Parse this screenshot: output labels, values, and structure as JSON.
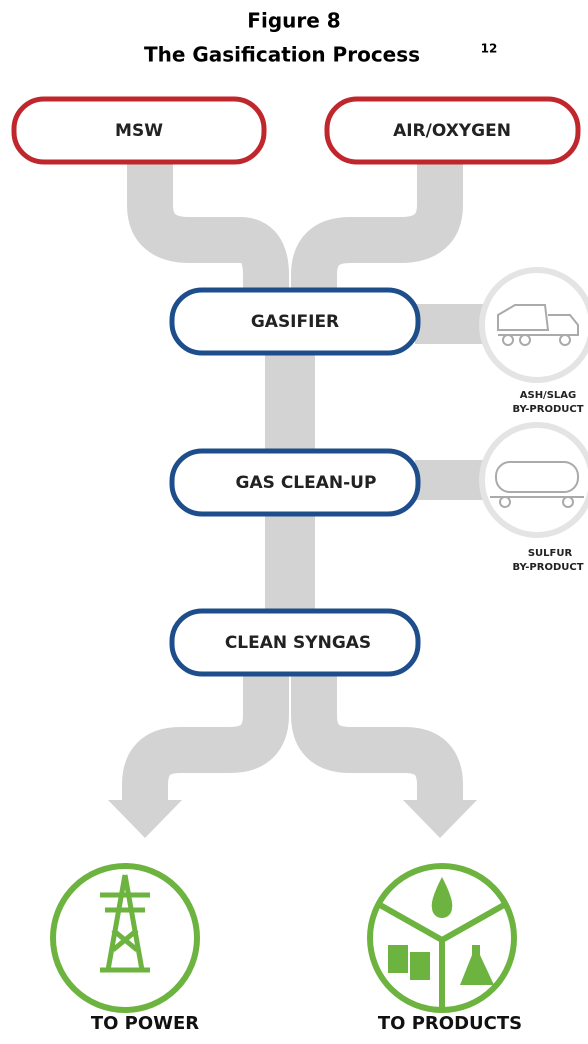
{
  "title": {
    "line1": "Figure 8",
    "line2": "The Gasification Process",
    "superscript": "12"
  },
  "inputs": [
    "MSW",
    "AIR/OXYGEN"
  ],
  "stages": [
    "GASIFIER",
    "GAS CLEAN-UP",
    "CLEAN SYNGAS"
  ],
  "byproducts": [
    [
      "ASH/SLAG",
      "BY-PRODUCT"
    ],
    [
      "SULFUR",
      "BY-PRODUCT"
    ]
  ],
  "outputs": [
    "TO POWER",
    "TO PRODUCTS"
  ]
}
